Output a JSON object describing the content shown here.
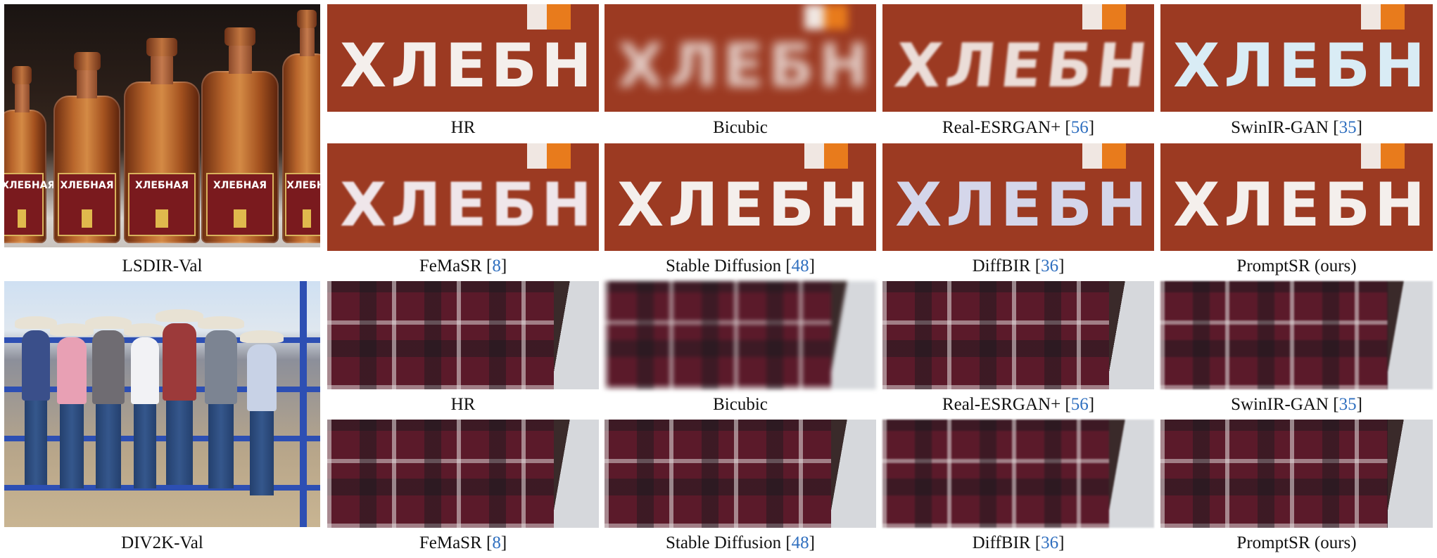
{
  "rows": [
    {
      "overview_label": "LSDIR-Val",
      "crop_word": "ХЛЕБН",
      "captions_top": [
        {
          "name": "HR",
          "ref": ""
        },
        {
          "name": "Bicubic",
          "ref": ""
        },
        {
          "name": "Real-ESRGAN+ [",
          "ref": "56"
        },
        {
          "name": "SwinIR-GAN [",
          "ref": "35"
        }
      ],
      "captions_bottom": [
        {
          "name": "FeMaSR [",
          "ref": "8"
        },
        {
          "name": "Stable Diffusion [",
          "ref": "48"
        },
        {
          "name": "DiffBIR [",
          "ref": "36"
        },
        {
          "name": "PromptSR (ours)",
          "ref": ""
        }
      ]
    },
    {
      "overview_label": "DIV2K-Val",
      "captions_top": [
        {
          "name": "HR",
          "ref": ""
        },
        {
          "name": "Bicubic",
          "ref": ""
        },
        {
          "name": "Real-ESRGAN+ [",
          "ref": "56"
        },
        {
          "name": "SwinIR-GAN [",
          "ref": "35"
        }
      ],
      "captions_bottom": [
        {
          "name": "FeMaSR [",
          "ref": "8"
        },
        {
          "name": "Stable Diffusion [",
          "ref": "48"
        },
        {
          "name": "DiffBIR [",
          "ref": "36"
        },
        {
          "name": "PromptSR (ours)",
          "ref": ""
        }
      ]
    }
  ],
  "bottle_label_text": "ХЛЕБНАЯ",
  "colors": {
    "ref": "#2f6fbf",
    "caption": "#111111"
  }
}
